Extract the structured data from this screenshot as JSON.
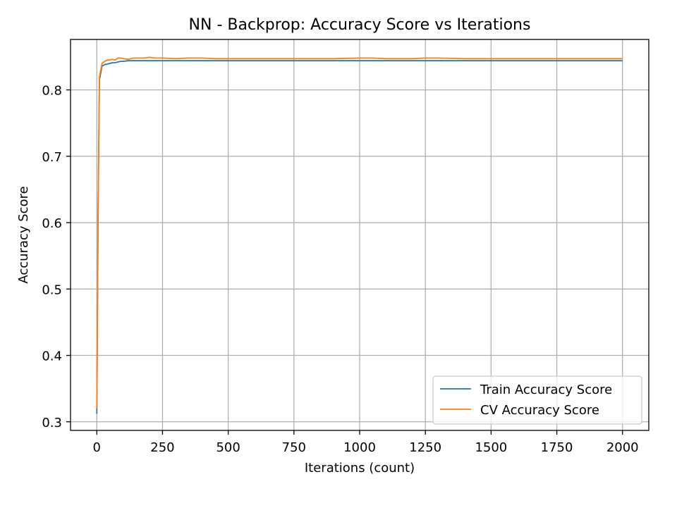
{
  "chart_data": {
    "type": "line",
    "title": "NN - Backprop: Accuracy Score vs Iterations",
    "xlabel": "Iterations (count)",
    "ylabel": "Accuracy Score",
    "xlim": [
      -100,
      2100
    ],
    "ylim": [
      0.287,
      0.876
    ],
    "xticks": [
      0,
      250,
      500,
      750,
      1000,
      1250,
      1500,
      1750,
      2000
    ],
    "yticks": [
      0.3,
      0.4,
      0.5,
      0.6,
      0.7,
      0.8
    ],
    "ytick_labels": [
      "0.3",
      "0.4",
      "0.5",
      "0.6",
      "0.7",
      "0.8"
    ],
    "grid": true,
    "legend_position": "lower-right",
    "series": [
      {
        "name": "Train Accuracy Score",
        "color": "#1f77b4",
        "x": [
          0,
          5,
          10,
          20,
          30,
          40,
          50,
          60,
          70,
          80,
          90,
          100,
          120,
          140,
          160,
          200,
          250,
          300,
          400,
          500,
          750,
          1000,
          1250,
          1500,
          1750,
          2000
        ],
        "y": [
          0.312,
          0.62,
          0.815,
          0.836,
          0.838,
          0.839,
          0.84,
          0.841,
          0.841,
          0.842,
          0.843,
          0.843,
          0.844,
          0.844,
          0.844,
          0.844,
          0.844,
          0.844,
          0.844,
          0.844,
          0.844,
          0.844,
          0.844,
          0.844,
          0.844,
          0.844
        ]
      },
      {
        "name": "CV Accuracy Score",
        "color": "#ff7f0e",
        "x": [
          0,
          5,
          10,
          20,
          30,
          40,
          50,
          60,
          70,
          80,
          90,
          100,
          120,
          140,
          160,
          180,
          200,
          220,
          250,
          300,
          350,
          400,
          450,
          500,
          600,
          700,
          750,
          800,
          900,
          1000,
          1050,
          1100,
          1200,
          1250,
          1300,
          1400,
          1500,
          1600,
          1700,
          1750,
          1800,
          1900,
          2000
        ],
        "y": [
          0.32,
          0.6,
          0.82,
          0.84,
          0.843,
          0.845,
          0.845,
          0.846,
          0.845,
          0.848,
          0.848,
          0.847,
          0.846,
          0.848,
          0.848,
          0.848,
          0.849,
          0.848,
          0.848,
          0.847,
          0.848,
          0.848,
          0.847,
          0.847,
          0.847,
          0.847,
          0.847,
          0.847,
          0.847,
          0.848,
          0.848,
          0.847,
          0.847,
          0.848,
          0.848,
          0.847,
          0.847,
          0.847,
          0.847,
          0.847,
          0.847,
          0.847,
          0.847
        ]
      }
    ]
  }
}
